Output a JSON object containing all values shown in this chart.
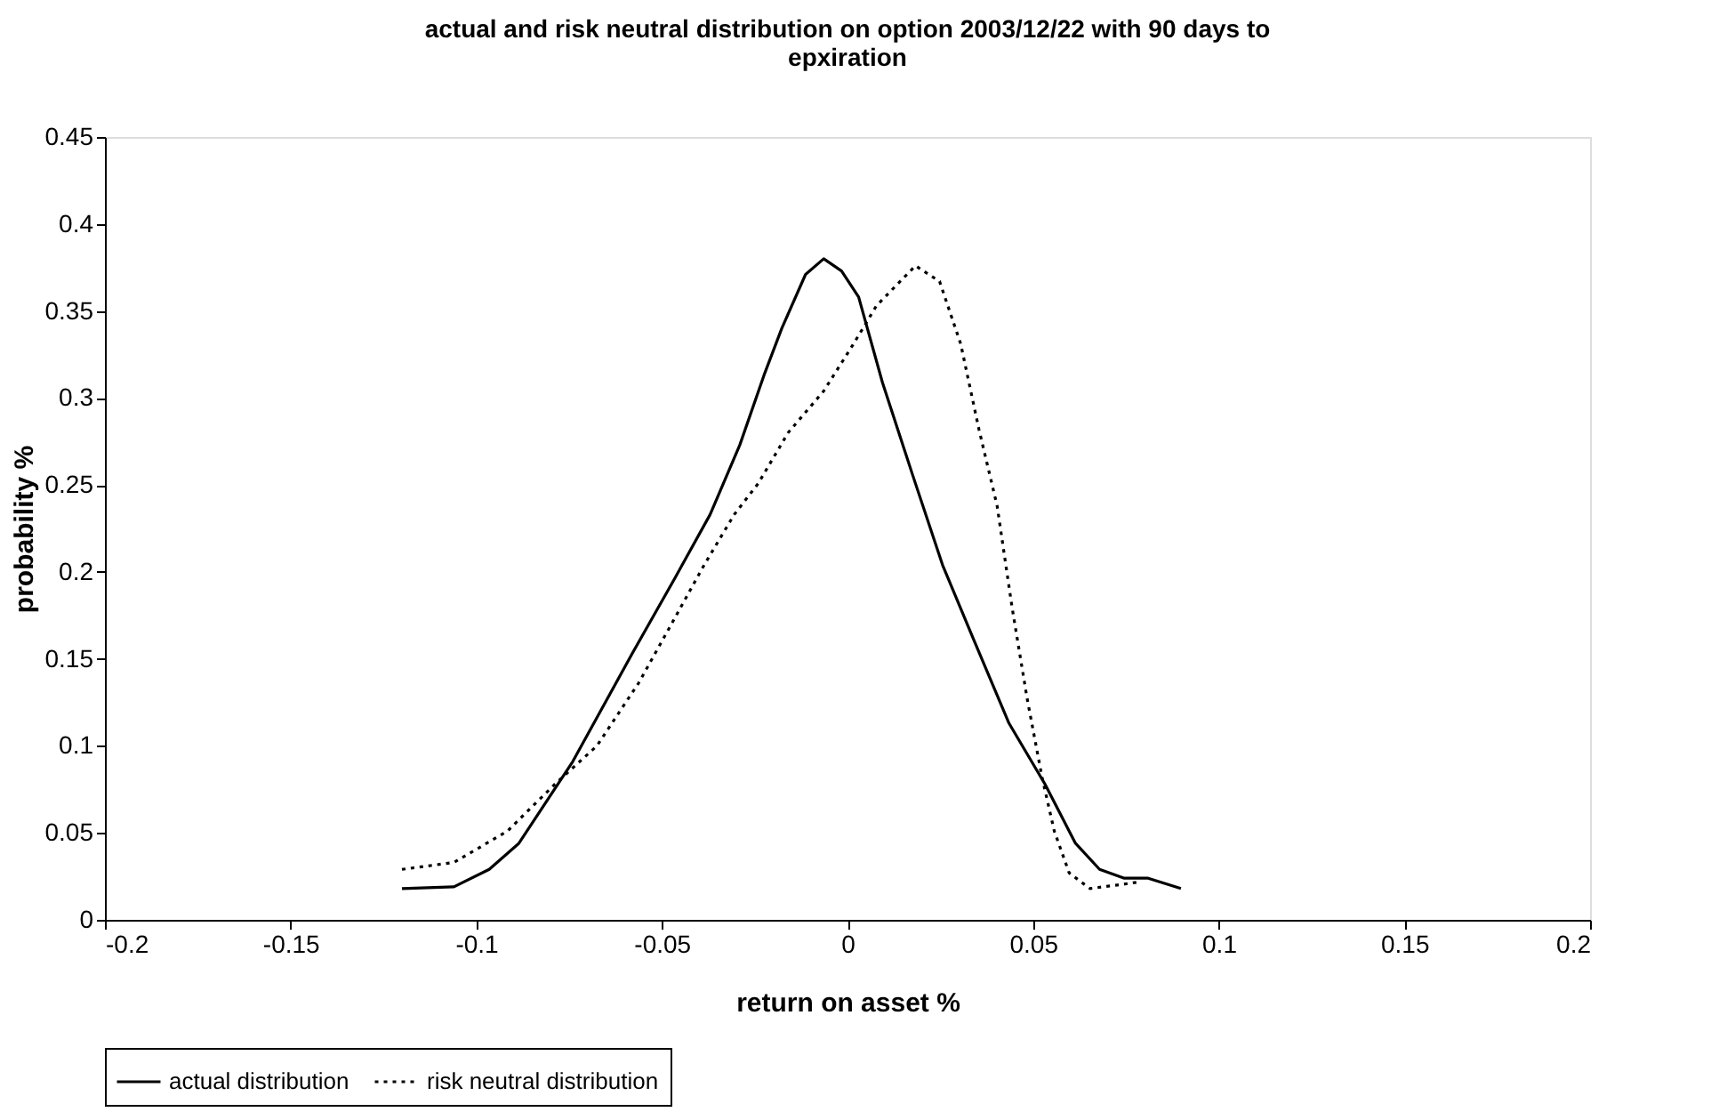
{
  "chart_data": {
    "type": "line",
    "title": "actual and risk neutral distribution on option 2003/12/22 with 90 days to epxiration",
    "xlabel": "return on asset %",
    "ylabel": "probability %",
    "xlim": [
      -0.2,
      0.2
    ],
    "xticks": [
      -0.2,
      -0.15,
      -0.1,
      -0.05,
      0,
      0.05,
      0.1,
      0.15,
      0.2
    ],
    "ylim": [
      0,
      0.45
    ],
    "yticks": [
      0,
      0.05,
      0.1,
      0.15,
      0.2,
      0.25,
      0.3,
      0.35,
      0.4,
      0.45
    ],
    "grid": false,
    "legend": "bottom",
    "marker": "none",
    "series": [
      {
        "name": "actual distribution",
        "color": "#000000",
        "line_style": "solid",
        "x": [
          -0.12,
          -0.106,
          -0.0965,
          -0.0885,
          -0.074,
          -0.058,
          -0.0466,
          -0.037,
          -0.029,
          -0.0225,
          -0.0177,
          -0.0113,
          -0.0064,
          -0.0016,
          0.003,
          0.0094,
          0.0175,
          0.0256,
          0.0338,
          0.0435,
          0.0532,
          0.0614,
          0.0679,
          0.0744,
          0.0808,
          0.0898
        ],
        "values": [
          0.018,
          0.019,
          0.029,
          0.044,
          0.091,
          0.153,
          0.196,
          0.233,
          0.273,
          0.313,
          0.34,
          0.371,
          0.38,
          0.373,
          0.358,
          0.309,
          0.256,
          0.204,
          0.162,
          0.113,
          0.078,
          0.044,
          0.029,
          0.024,
          0.024,
          0.018
        ]
      },
      {
        "name": "risk neutral distribution",
        "color": "#000000",
        "line_style": "dotted",
        "x": [
          -0.12,
          -0.106,
          -0.0916,
          -0.0788,
          -0.0675,
          -0.0563,
          -0.0482,
          -0.0386,
          -0.0305,
          -0.024,
          -0.016,
          -0.0064,
          0.0016,
          0.0078,
          0.0183,
          0.0248,
          0.0305,
          0.0354,
          0.0403,
          0.0443,
          0.0484,
          0.0524,
          0.0557,
          0.0597,
          0.0653,
          0.0727,
          0.0792
        ],
        "values": [
          0.029,
          0.033,
          0.051,
          0.078,
          0.1,
          0.136,
          0.167,
          0.204,
          0.233,
          0.251,
          0.28,
          0.304,
          0.331,
          0.353,
          0.376,
          0.367,
          0.331,
          0.282,
          0.238,
          0.18,
          0.127,
          0.082,
          0.051,
          0.027,
          0.018,
          0.02,
          0.022
        ]
      }
    ]
  }
}
